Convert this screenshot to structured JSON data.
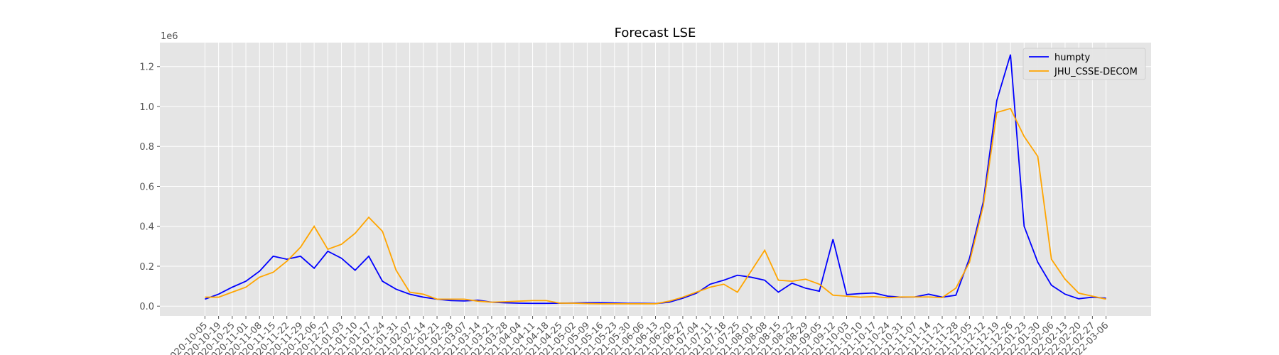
{
  "chart_data": {
    "type": "line",
    "title": "Forecast LSE",
    "y_offset_label": "1e6",
    "categories": [
      "2020-10-05",
      "2020-10-19",
      "2020-10-25",
      "2020-11-01",
      "2020-11-08",
      "2020-11-15",
      "2020-11-22",
      "2020-11-29",
      "2020-12-06",
      "2020-12-27",
      "2021-01-03",
      "2021-01-10",
      "2021-01-17",
      "2021-01-24",
      "2021-01-31",
      "2021-02-07",
      "2021-02-14",
      "2021-02-21",
      "2021-02-28",
      "2021-03-07",
      "2021-03-14",
      "2021-03-21",
      "2021-03-28",
      "2021-04-04",
      "2021-04-11",
      "2021-04-18",
      "2021-04-25",
      "2021-05-02",
      "2021-05-09",
      "2021-05-16",
      "2021-05-23",
      "2021-05-30",
      "2021-06-06",
      "2021-06-13",
      "2021-06-20",
      "2021-06-27",
      "2021-07-04",
      "2021-07-11",
      "2021-07-18",
      "2021-07-25",
      "2021-08-01",
      "2021-08-08",
      "2021-08-15",
      "2021-08-22",
      "2021-08-29",
      "2021-09-05",
      "2021-09-12",
      "2021-10-03",
      "2021-10-10",
      "2021-10-17",
      "2021-10-24",
      "2021-10-31",
      "2021-11-07",
      "2021-11-14",
      "2021-11-21",
      "2021-11-28",
      "2021-12-05",
      "2021-12-12",
      "2021-12-19",
      "2021-12-26",
      "2022-01-23",
      "2022-01-30",
      "2022-02-06",
      "2022-02-13",
      "2022-02-20",
      "2022-02-27",
      "2022-03-06"
    ],
    "series": [
      {
        "name": "humpty",
        "color": "#0000ff",
        "values": [
          35000,
          60000,
          95000,
          125000,
          175000,
          250000,
          235000,
          250000,
          190000,
          275000,
          240000,
          180000,
          250000,
          125000,
          85000,
          60000,
          45000,
          35000,
          28000,
          26000,
          30000,
          20000,
          17000,
          15000,
          14000,
          14000,
          15000,
          16000,
          17000,
          17000,
          16000,
          14000,
          14000,
          13000,
          20000,
          40000,
          65000,
          110000,
          130000,
          155000,
          145000,
          130000,
          70000,
          115000,
          90000,
          75000,
          335000,
          58000,
          63000,
          66000,
          50000,
          45000,
          46000,
          60000,
          45000,
          55000,
          240000,
          520000,
          1030000,
          1260000,
          400000,
          220000,
          105000,
          60000,
          37000,
          45000,
          40000
        ]
      },
      {
        "name": "JHU_CSSE-DECOM",
        "color": "#ffa500",
        "values": [
          45000,
          45000,
          70000,
          95000,
          145000,
          170000,
          225000,
          295000,
          400000,
          285000,
          310000,
          365000,
          445000,
          375000,
          180000,
          70000,
          60000,
          35000,
          35000,
          35000,
          25000,
          20000,
          22000,
          25000,
          28000,
          28000,
          15000,
          15000,
          13000,
          12000,
          12000,
          12000,
          12000,
          12000,
          25000,
          45000,
          70000,
          95000,
          110000,
          70000,
          175000,
          280000,
          130000,
          125000,
          135000,
          110000,
          55000,
          50000,
          45000,
          48000,
          42000,
          46000,
          46000,
          46000,
          43000,
          90000,
          220000,
          500000,
          970000,
          990000,
          850000,
          750000,
          235000,
          135000,
          65000,
          50000,
          35000
        ]
      }
    ],
    "ylim": [
      -49000,
      1320000
    ],
    "yticks": [
      {
        "value": 0,
        "label": "0.0"
      },
      {
        "value": 200000,
        "label": "0.2"
      },
      {
        "value": 400000,
        "label": "0.4"
      },
      {
        "value": 600000,
        "label": "0.6"
      },
      {
        "value": 800000,
        "label": "0.8"
      },
      {
        "value": 1000000,
        "label": "1.0"
      },
      {
        "value": 1200000,
        "label": "1.2"
      }
    ],
    "grid": true,
    "legend": "upper right"
  }
}
